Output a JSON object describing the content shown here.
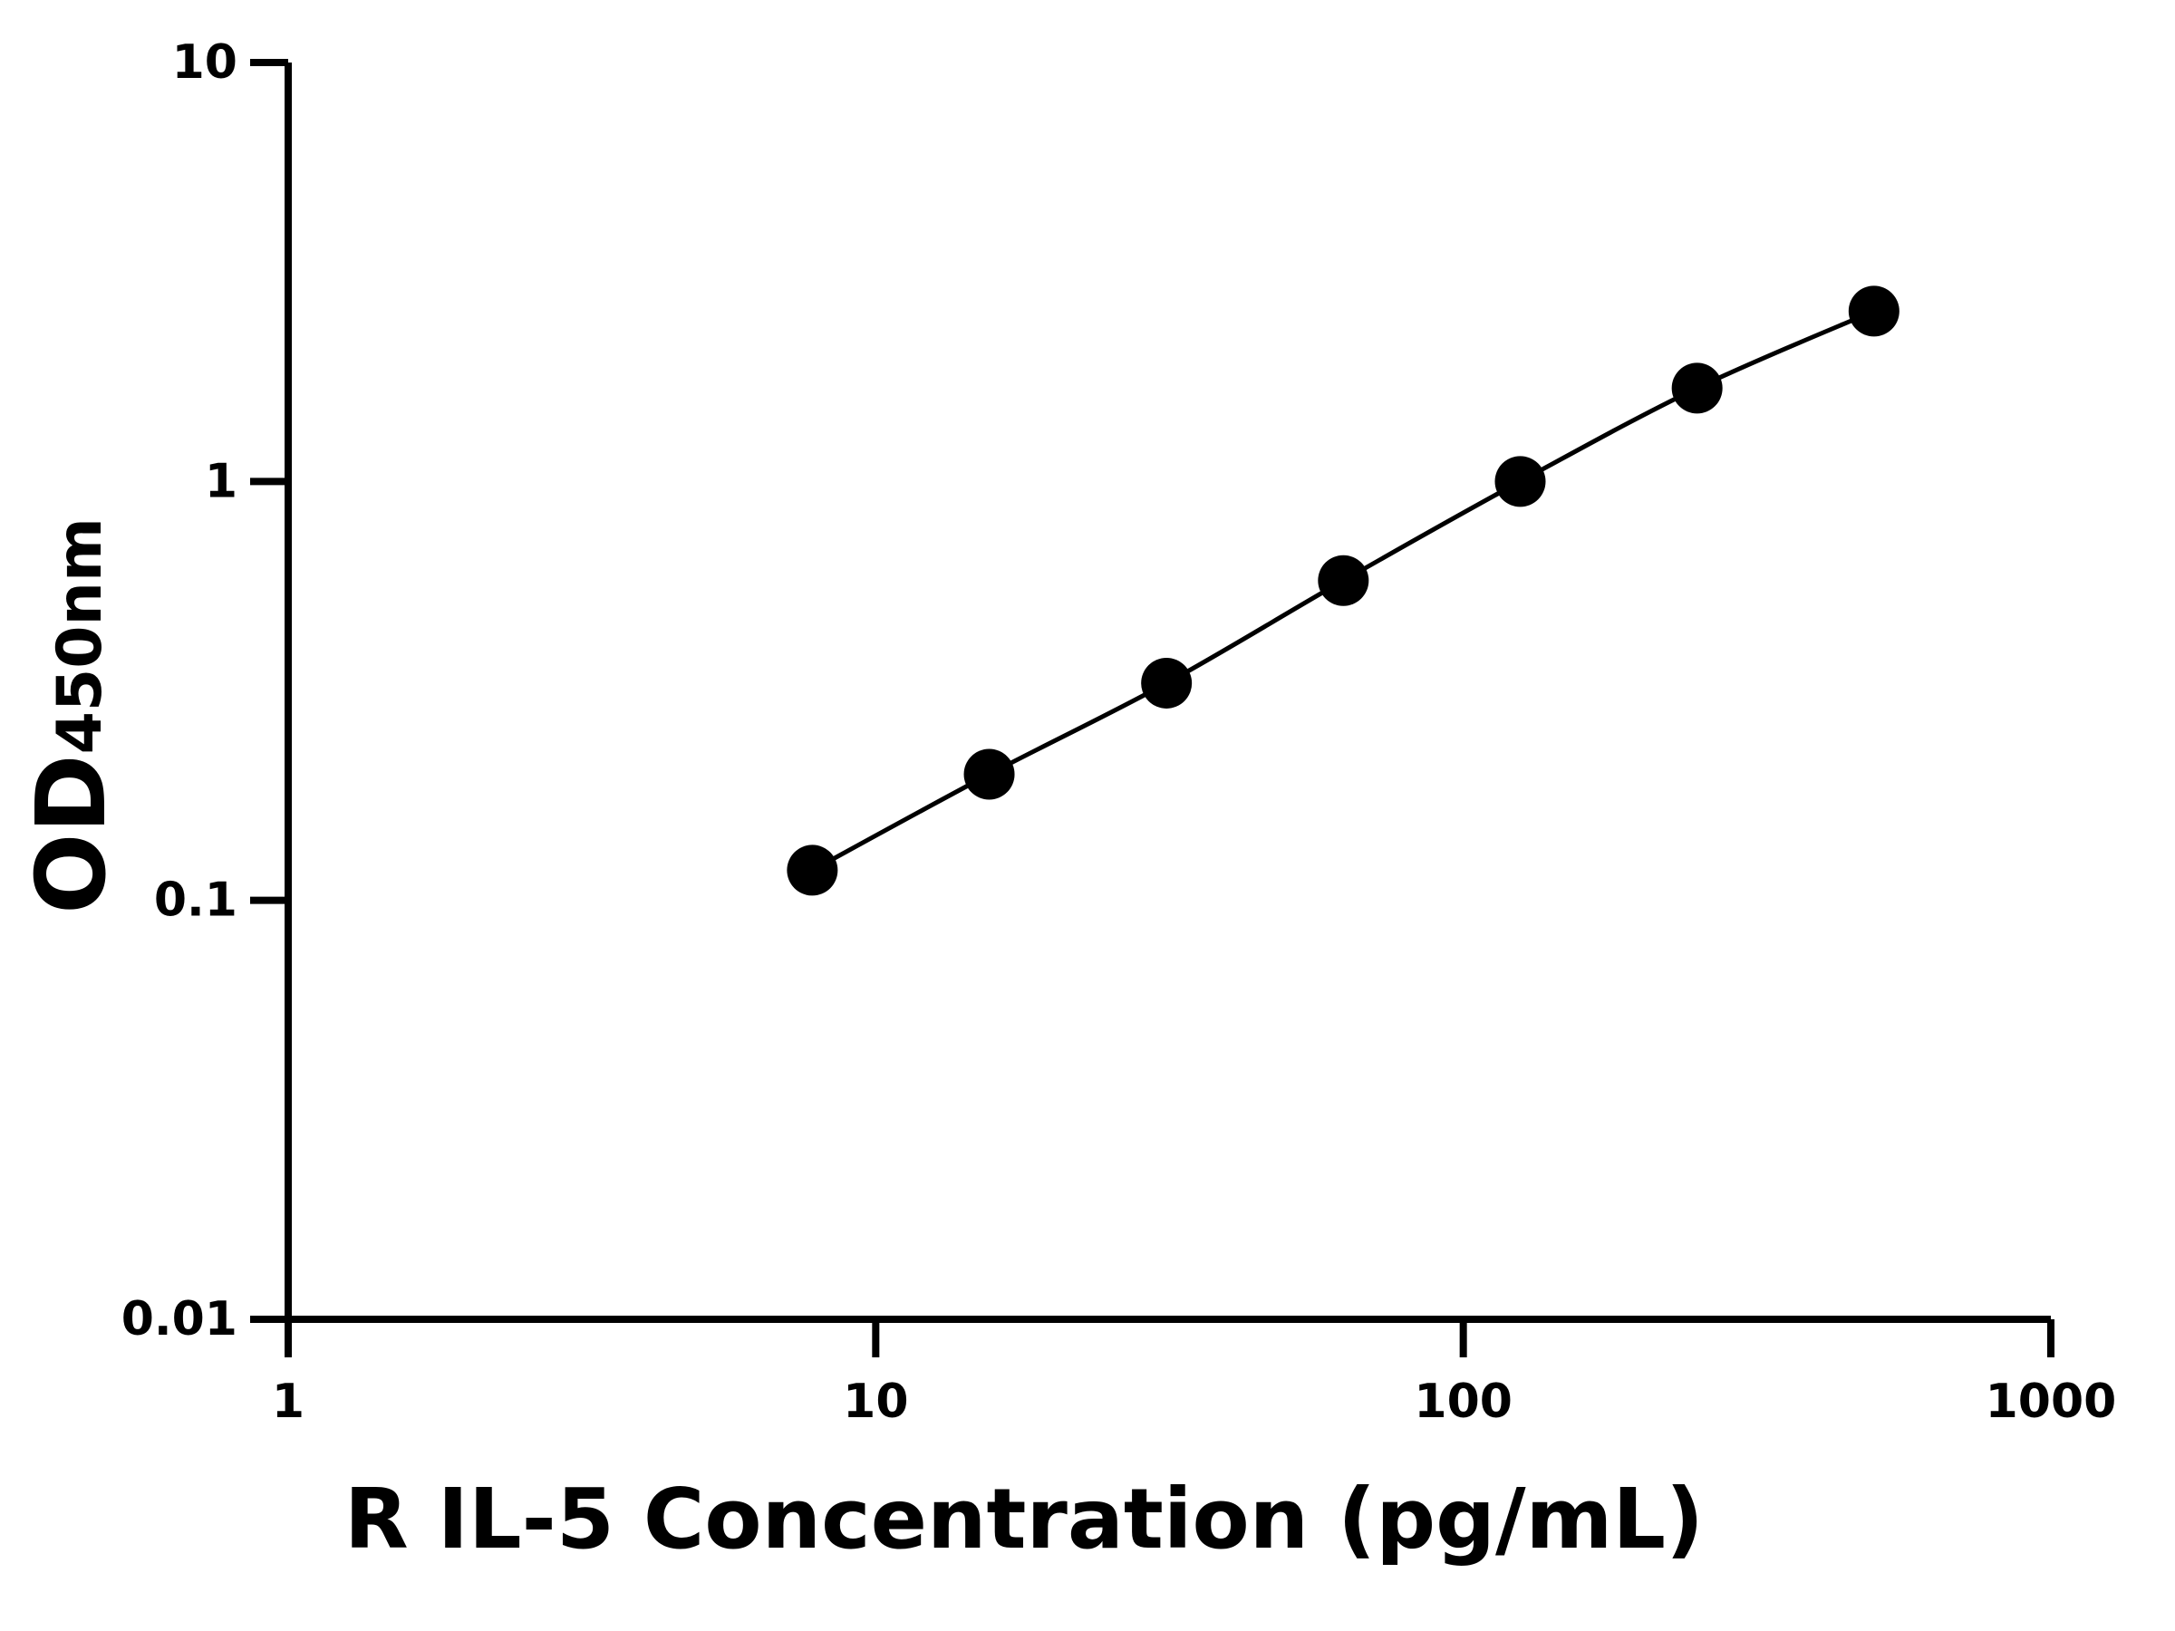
{
  "chart_data": {
    "type": "scatter",
    "x_label": "R IL-5 Concentration (pg/mL)",
    "y_label": "OD",
    "y_label_subscript": "450nm",
    "x_log": true,
    "y_log": true,
    "xlim": [
      1,
      1000
    ],
    "xticks": [
      1,
      10,
      100,
      1000
    ],
    "ylim": [
      0.01,
      10
    ],
    "yticks": [
      0.01,
      0.1,
      1,
      10
    ],
    "fit_curve": true,
    "series": [
      {
        "name": "R IL-5",
        "color": "#000000",
        "x": [
          7.8,
          15.6,
          31.25,
          62.5,
          125,
          250,
          500
        ],
        "values": [
          0.118,
          0.2,
          0.33,
          0.58,
          1.0,
          1.67,
          2.55
        ]
      }
    ]
  }
}
